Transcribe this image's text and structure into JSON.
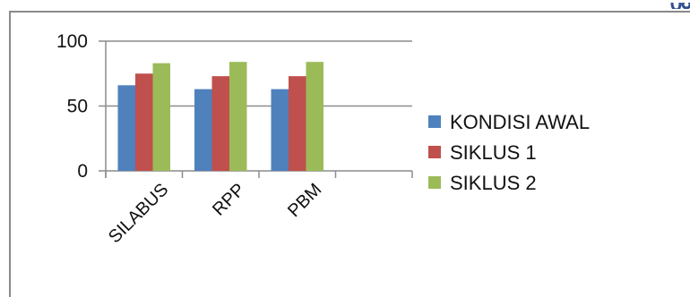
{
  "chart_data": {
    "type": "bar",
    "categories": [
      "SILABUS",
      "RPP",
      "PBM"
    ],
    "series": [
      {
        "name": "KONDISI AWAL",
        "color": "#4F81BD",
        "values": [
          66,
          63,
          63
        ]
      },
      {
        "name": "SIKLUS 1",
        "color": "#C0504D",
        "values": [
          75,
          73,
          73
        ]
      },
      {
        "name": "SIKLUS 2",
        "color": "#9BBB59",
        "values": [
          83,
          84,
          84
        ]
      }
    ],
    "yticks": [
      "100",
      "50",
      "0"
    ],
    "ylim": [
      0,
      100
    ],
    "xlabel": "",
    "ylabel": "",
    "title": "",
    "grid": true,
    "legend_position": "right"
  }
}
